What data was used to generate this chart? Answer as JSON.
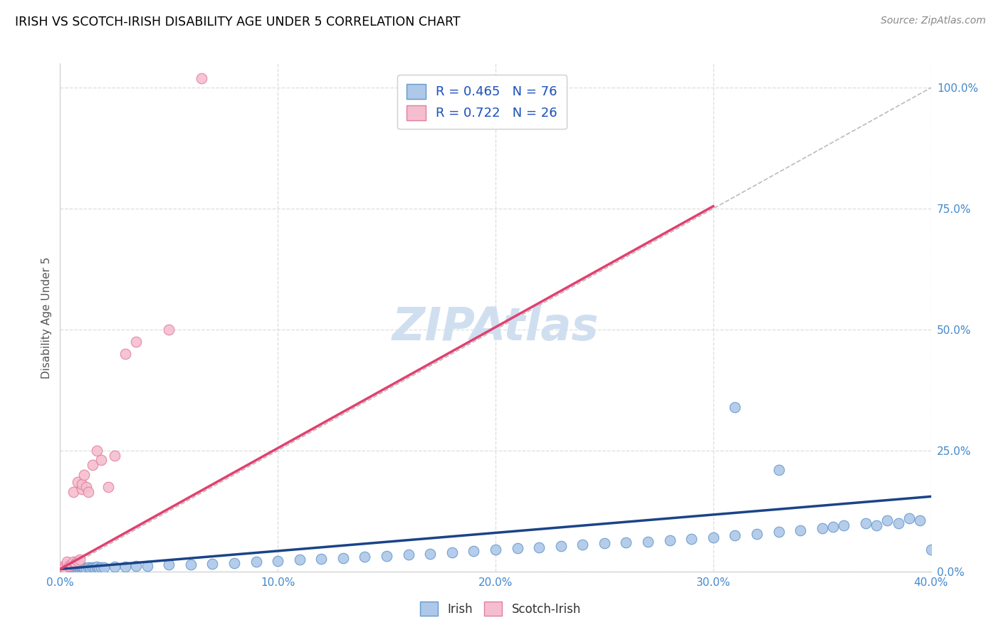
{
  "title": "IRISH VS SCOTCH-IRISH DISABILITY AGE UNDER 5 CORRELATION CHART",
  "source": "Source: ZipAtlas.com",
  "ylabel": "Disability Age Under 5",
  "xlim": [
    0.0,
    0.4
  ],
  "ylim": [
    0.0,
    1.05
  ],
  "xtick_labels": [
    "0.0%",
    "10.0%",
    "20.0%",
    "30.0%",
    "40.0%"
  ],
  "xtick_vals": [
    0.0,
    0.1,
    0.2,
    0.3,
    0.4
  ],
  "ytick_labels": [
    "0.0%",
    "25.0%",
    "50.0%",
    "75.0%",
    "100.0%"
  ],
  "ytick_vals": [
    0.0,
    0.25,
    0.5,
    0.75,
    1.0
  ],
  "irish_color": "#adc8e8",
  "irish_edge_color": "#6699cc",
  "scotch_irish_color": "#f5bece",
  "scotch_irish_edge_color": "#e080a0",
  "irish_line_color": "#1a4488",
  "scotch_irish_line_color": "#e04070",
  "diag_line_color": "#bbbbbb",
  "watermark_color": "#d0dff0",
  "legend_irish_R": "0.465",
  "legend_irish_N": "76",
  "legend_scotch_R": "0.722",
  "legend_scotch_N": "26",
  "irish_x": [
    0.001,
    0.002,
    0.002,
    0.003,
    0.003,
    0.004,
    0.004,
    0.005,
    0.005,
    0.006,
    0.006,
    0.007,
    0.007,
    0.008,
    0.008,
    0.009,
    0.009,
    0.01,
    0.01,
    0.011,
    0.011,
    0.012,
    0.013,
    0.014,
    0.015,
    0.016,
    0.017,
    0.018,
    0.019,
    0.02,
    0.025,
    0.03,
    0.035,
    0.04,
    0.05,
    0.06,
    0.07,
    0.08,
    0.09,
    0.1,
    0.11,
    0.12,
    0.13,
    0.14,
    0.15,
    0.16,
    0.17,
    0.18,
    0.19,
    0.2,
    0.21,
    0.22,
    0.23,
    0.24,
    0.25,
    0.26,
    0.27,
    0.28,
    0.29,
    0.3,
    0.31,
    0.32,
    0.33,
    0.34,
    0.35,
    0.355,
    0.36,
    0.37,
    0.375,
    0.38,
    0.385,
    0.39,
    0.395,
    0.4,
    0.31,
    0.33
  ],
  "irish_y": [
    0.005,
    0.003,
    0.008,
    0.004,
    0.007,
    0.005,
    0.01,
    0.003,
    0.007,
    0.005,
    0.009,
    0.004,
    0.008,
    0.005,
    0.01,
    0.004,
    0.008,
    0.005,
    0.01,
    0.005,
    0.007,
    0.006,
    0.008,
    0.007,
    0.009,
    0.008,
    0.01,
    0.007,
    0.009,
    0.008,
    0.01,
    0.01,
    0.012,
    0.012,
    0.014,
    0.015,
    0.016,
    0.018,
    0.02,
    0.022,
    0.024,
    0.026,
    0.028,
    0.03,
    0.032,
    0.035,
    0.037,
    0.04,
    0.042,
    0.045,
    0.048,
    0.05,
    0.052,
    0.055,
    0.058,
    0.06,
    0.062,
    0.065,
    0.068,
    0.07,
    0.075,
    0.078,
    0.082,
    0.085,
    0.09,
    0.092,
    0.095,
    0.1,
    0.095,
    0.105,
    0.1,
    0.11,
    0.105,
    0.045,
    0.34,
    0.21
  ],
  "scotch_x": [
    0.001,
    0.002,
    0.003,
    0.003,
    0.004,
    0.005,
    0.006,
    0.006,
    0.007,
    0.008,
    0.008,
    0.009,
    0.01,
    0.01,
    0.011,
    0.012,
    0.013,
    0.015,
    0.017,
    0.019,
    0.022,
    0.025,
    0.03,
    0.035,
    0.05,
    0.065
  ],
  "scotch_y": [
    0.01,
    0.008,
    0.015,
    0.02,
    0.012,
    0.015,
    0.02,
    0.165,
    0.018,
    0.022,
    0.185,
    0.025,
    0.17,
    0.18,
    0.2,
    0.175,
    0.165,
    0.22,
    0.25,
    0.23,
    0.175,
    0.24,
    0.45,
    0.475,
    0.5,
    1.02
  ]
}
